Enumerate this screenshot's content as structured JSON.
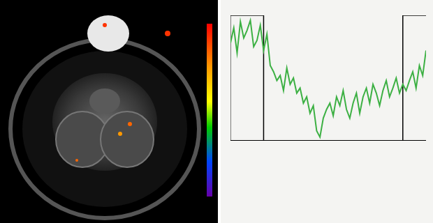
{
  "chart_data": {
    "type": "line",
    "xlim": [
      0,
      59
    ],
    "ylim": [
      0,
      100
    ],
    "grid": false,
    "tick_labels": false,
    "series": [
      {
        "color": "#3cb043",
        "line_style": "solid",
        "x": [
          0,
          1,
          2,
          3,
          4,
          5,
          6,
          7,
          8,
          9,
          10,
          11,
          12,
          13,
          14,
          15,
          16,
          17,
          18,
          19,
          20,
          21,
          22,
          23,
          24,
          25,
          26,
          27,
          28,
          29,
          30,
          31,
          32,
          33,
          34,
          35,
          36,
          37,
          38,
          39,
          40,
          41,
          42,
          43,
          44,
          45,
          46,
          47,
          48,
          49,
          50,
          51,
          52,
          53,
          54,
          55,
          56,
          57,
          58,
          59
        ],
        "values": [
          78,
          90,
          70,
          95,
          82,
          88,
          96,
          75,
          80,
          92,
          72,
          85,
          60,
          55,
          48,
          52,
          40,
          58,
          45,
          50,
          38,
          42,
          30,
          35,
          22,
          28,
          8,
          3,
          18,
          25,
          30,
          20,
          35,
          28,
          40,
          25,
          18,
          30,
          38,
          22,
          35,
          42,
          30,
          45,
          38,
          28,
          40,
          48,
          35,
          42,
          50,
          38,
          45,
          40,
          48,
          55,
          42,
          60,
          52,
          72
        ]
      },
      {
        "color": "#000000",
        "line_style": "solid",
        "x": [
          0,
          10,
          10,
          52,
          52,
          59
        ],
        "values": [
          100,
          100,
          0,
          0,
          100,
          100
        ]
      }
    ]
  }
}
